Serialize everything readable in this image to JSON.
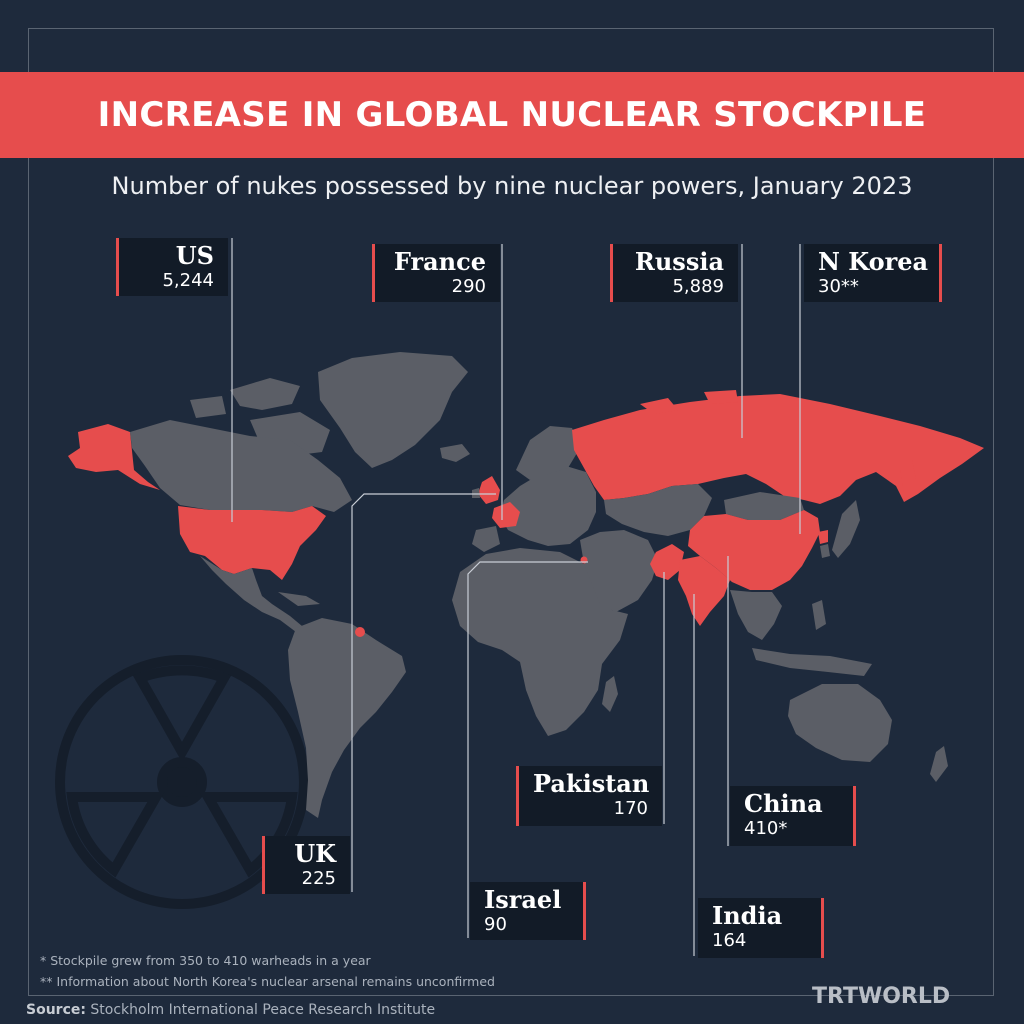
{
  "header": {
    "title": "INCREASE IN GLOBAL NUCLEAR STOCKPILE",
    "subtitle": "Number of nukes possessed by nine nuclear powers, January 2023"
  },
  "colors": {
    "background": "#1e2a3c",
    "land": "#5b5e66",
    "nuclear_power": "#e64d4d",
    "banner": "#e64d4d",
    "label_box": "#121b27"
  },
  "countries": [
    {
      "name": "US",
      "value": "5,244"
    },
    {
      "name": "France",
      "value": "290"
    },
    {
      "name": "Russia",
      "value": "5,889"
    },
    {
      "name": "N Korea",
      "value": "30**"
    },
    {
      "name": "UK",
      "value": "225"
    },
    {
      "name": "Israel",
      "value": "90"
    },
    {
      "name": "Pakistan",
      "value": "170"
    },
    {
      "name": "China",
      "value": "410*"
    },
    {
      "name": "India",
      "value": "164"
    }
  ],
  "footnotes": [
    "* Stockpile grew from 350 to 410 warheads in a year",
    "** Information about North Korea's nuclear arsenal remains unconfirmed"
  ],
  "source": {
    "label": "Source:",
    "text": "Stockholm International Peace Research Institute"
  },
  "brand": "TRTWORLD",
  "decor": {
    "radiation_icon": "radiation-icon"
  }
}
